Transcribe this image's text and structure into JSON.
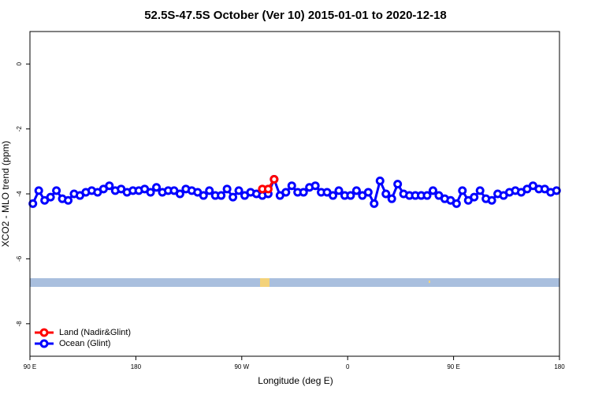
{
  "chart_data": {
    "type": "line",
    "title": "52.5S-47.5S October (Ver 10)   2015-01-01 to 2020-12-18",
    "xlabel": "Longitude (deg E)",
    "ylabel": "XCO2 - MLO trend (ppm)",
    "xlim": [
      90,
      540
    ],
    "ylim": [
      -9,
      1
    ],
    "xticks": [
      {
        "value": 90,
        "label": "90 E"
      },
      180,
      {
        "value": 270,
        "label": "90 W"
      },
      {
        "value": 360,
        "label": "0"
      },
      {
        "value": 450,
        "label": "90 E"
      },
      {
        "value": 540,
        "label": "180"
      }
    ],
    "yticks": [
      0,
      -2,
      -4,
      -6,
      -8
    ],
    "legend": "bottom-left",
    "series": [
      {
        "name": "Ocean (Glint)",
        "color": "#0000ff",
        "x": [
          92.5,
          97.5,
          102.5,
          107.5,
          112.5,
          117.5,
          122.5,
          127.5,
          132.5,
          137.5,
          142.5,
          147.5,
          152.5,
          157.5,
          162.5,
          167.5,
          172.5,
          177.5,
          182.5,
          187.5,
          192.5,
          197.5,
          202.5,
          207.5,
          212.5,
          217.5,
          222.5,
          227.5,
          232.5,
          237.5,
          242.5,
          247.5,
          252.5,
          257.5,
          262.5,
          267.5,
          272.5,
          277.5,
          282.5,
          287.5,
          292.5,
          297.5,
          302.5,
          307.5,
          312.5,
          317.5,
          322.5,
          327.5,
          332.5,
          337.5,
          342.5,
          347.5,
          352.5,
          357.5,
          362.5,
          367.5,
          372.5,
          377.5,
          382.5,
          387.5,
          392.5,
          397.5,
          402.5,
          407.5,
          412.5,
          417.5,
          422.5,
          427.5,
          432.5,
          437.5,
          442.5,
          447.5,
          452.5,
          457.5,
          462.5,
          467.5,
          472.5,
          477.5,
          482.5,
          487.5,
          492.5,
          497.5,
          502.5,
          507.5,
          512.5,
          517.5,
          522.5,
          527.5,
          532.5,
          537.5
        ],
        "values": [
          -4.3,
          -3.9,
          -4.2,
          -4.1,
          -3.9,
          -4.15,
          -4.2,
          -4.0,
          -4.05,
          -3.95,
          -3.9,
          -3.95,
          -3.85,
          -3.75,
          -3.9,
          -3.85,
          -3.95,
          -3.9,
          -3.9,
          -3.85,
          -3.95,
          -3.8,
          -3.95,
          -3.9,
          -3.9,
          -4.0,
          -3.85,
          -3.9,
          -3.95,
          -4.05,
          -3.9,
          -4.05,
          -4.05,
          -3.85,
          -4.1,
          -3.9,
          -4.05,
          -3.95,
          -4.0,
          -4.05,
          -4.0,
          -3.55,
          -4.05,
          -3.95,
          -3.75,
          -3.95,
          -3.95,
          -3.8,
          -3.75,
          -3.95,
          -3.95,
          -4.05,
          -3.9,
          -4.05,
          -4.05,
          -3.9,
          -4.05,
          -3.95,
          -4.3,
          -3.6,
          -4.0,
          -4.15,
          -3.7,
          -4.0,
          -4.05,
          -4.05,
          -4.05,
          -4.05,
          -3.9,
          -4.05,
          -4.15,
          -4.2,
          -4.3,
          -3.9,
          -4.2,
          -4.1,
          -3.9,
          -4.15,
          -4.2,
          -4.0,
          -4.05,
          -3.95,
          -3.9,
          -3.95,
          -3.85,
          -3.75,
          -3.85,
          -3.85,
          -3.95,
          -3.9
        ]
      },
      {
        "name": "Land (Nadir&Glint)",
        "color": "#ff0000",
        "x": [
          287.5,
          292.5,
          297.5
        ],
        "values": [
          -3.85,
          -3.85,
          -3.55
        ]
      }
    ]
  }
}
